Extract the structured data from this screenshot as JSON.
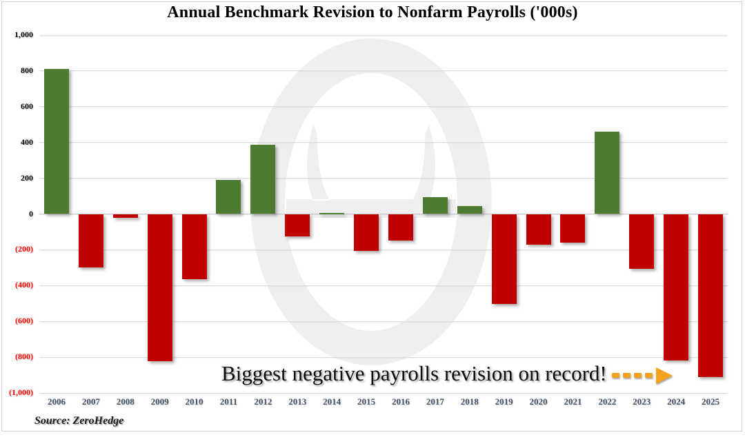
{
  "header": {
    "title": "Annual Benchmark Revision to Nonfarm Payrolls ('000s)"
  },
  "annotation": {
    "text": "Biggest negative payrolls revision on record!"
  },
  "source": {
    "text": "Source: ZeroHedge"
  },
  "watermark": {
    "name": "zerohedge-logo-watermark",
    "color": "#EFEFEF"
  },
  "colors": {
    "positive_bar": "#4E7B31",
    "negative_bar": "#C00000",
    "ytick_positive": "#000000",
    "ytick_negative": "#FF0000",
    "xlabel": "#44546A",
    "gridline": "#DCDCDC",
    "zero_line": "#C4C4C4",
    "arrow": "#F2A21C"
  },
  "chart_data": {
    "type": "bar",
    "title": "Annual Benchmark Revision to Nonfarm Payrolls ('000s)",
    "xlabel": "",
    "ylabel": "",
    "ylim": [
      -1000,
      1000
    ],
    "grid": true,
    "legend": false,
    "categories": [
      "2006",
      "2007",
      "2008",
      "2009",
      "2010",
      "2011",
      "2012",
      "2013",
      "2014",
      "2015",
      "2016",
      "2017",
      "2018",
      "2019",
      "2020",
      "2021",
      "2022",
      "2023",
      "2024",
      "2025"
    ],
    "values": [
      810,
      -297,
      -21,
      -824,
      -366,
      192,
      386,
      -124,
      7,
      -208,
      -150,
      95,
      43,
      -501,
      -173,
      -161,
      462,
      -306,
      -818,
      -911
    ],
    "y_ticks": [
      {
        "value": 1000,
        "label": "1,000"
      },
      {
        "value": 800,
        "label": "800"
      },
      {
        "value": 600,
        "label": "600"
      },
      {
        "value": 400,
        "label": "400"
      },
      {
        "value": 200,
        "label": "200"
      },
      {
        "value": 0,
        "label": "0"
      },
      {
        "value": -200,
        "label": "(200)"
      },
      {
        "value": -400,
        "label": "(400)"
      },
      {
        "value": -600,
        "label": "(600)"
      },
      {
        "value": -800,
        "label": "(800)"
      },
      {
        "value": -1000,
        "label": "(1,000)"
      }
    ]
  }
}
